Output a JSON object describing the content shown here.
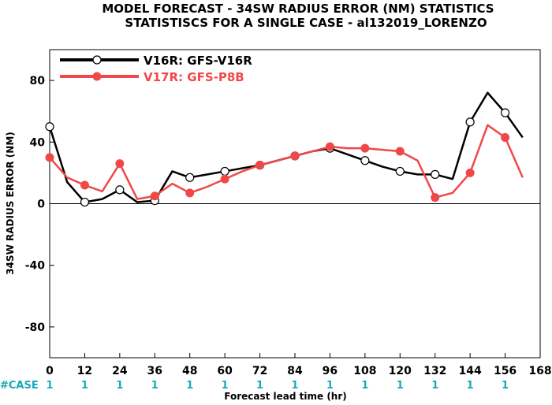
{
  "chart_data": {
    "type": "line",
    "title_line1": "MODEL FORECAST - 34SW RADIUS ERROR (NM) STATISTICS",
    "title_line2": "STATISTISCS FOR A SINGLE CASE - al132019_LORENZO",
    "xlabel": "Forecast lead time (hr)",
    "ylabel": "34SW RADIUS ERROR (NM)",
    "xlim": [
      0,
      168
    ],
    "ylim": [
      -100,
      100
    ],
    "x_ticks": [
      0,
      12,
      24,
      36,
      48,
      60,
      72,
      84,
      96,
      108,
      120,
      132,
      144,
      156,
      168
    ],
    "y_ticks": [
      80,
      40,
      0,
      -40,
      -80
    ],
    "zero_line": true,
    "legend_position": "top-left",
    "series": [
      {
        "name": "V16R: GFS-V16R",
        "color": "#000000",
        "x": [
          0,
          6,
          12,
          18,
          24,
          30,
          36,
          42,
          48,
          54,
          60,
          66,
          72,
          78,
          84,
          90,
          96,
          102,
          108,
          114,
          120,
          126,
          132,
          138,
          144,
          150,
          156,
          162
        ],
        "values": [
          50,
          14,
          1,
          3,
          9,
          1,
          2,
          21,
          17,
          19,
          21,
          23,
          25,
          28,
          31,
          34,
          36,
          32,
          28,
          24,
          21,
          19,
          19,
          16,
          53,
          72,
          59,
          43
        ],
        "marker_x": [
          0,
          12,
          24,
          36,
          48,
          60,
          72,
          84,
          96,
          108,
          120,
          132,
          144,
          156
        ]
      },
      {
        "name": "V17R: GFS-P8B",
        "color": "#f04848",
        "x": [
          0,
          6,
          12,
          18,
          24,
          30,
          36,
          42,
          48,
          54,
          60,
          66,
          72,
          78,
          84,
          90,
          96,
          102,
          108,
          114,
          120,
          126,
          132,
          138,
          144,
          150,
          156,
          162
        ],
        "values": [
          30,
          17,
          12,
          8,
          26,
          3,
          5,
          13,
          7,
          11,
          16,
          21,
          25,
          28,
          31,
          34,
          37,
          36,
          36,
          35,
          34,
          28,
          4,
          7,
          20,
          51,
          43,
          17
        ],
        "marker_x": [
          0,
          12,
          24,
          36,
          48,
          60,
          72,
          84,
          96,
          108,
          120,
          132,
          144,
          156
        ]
      }
    ],
    "case_label": "#CASE",
    "case_counts": [
      "1",
      "1",
      "1",
      "1",
      "1",
      "1",
      "1",
      "1",
      "1",
      "1",
      "1",
      "1",
      "1",
      "1"
    ]
  }
}
